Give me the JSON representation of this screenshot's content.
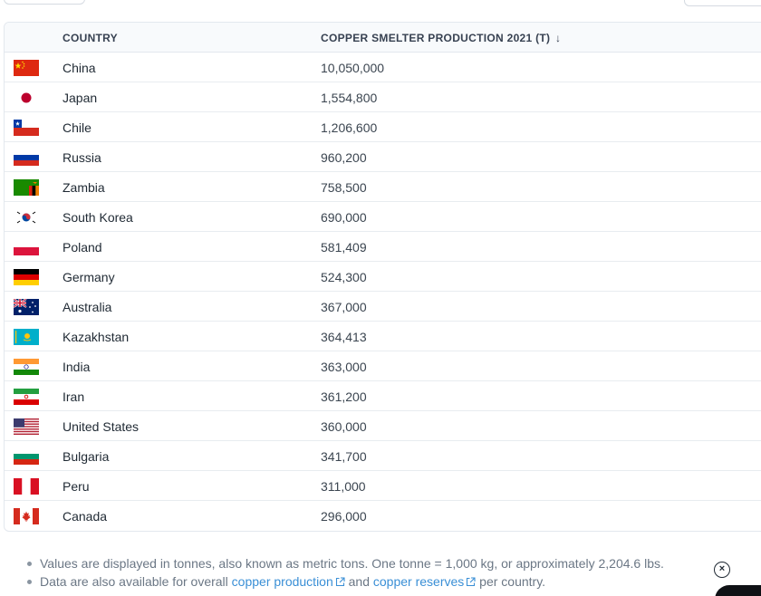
{
  "table": {
    "header": {
      "country": "COUNTRY",
      "production": "COPPER SMELTER PRODUCTION 2021 (T)",
      "sort_icon": "↓"
    },
    "rows": [
      {
        "country": "China",
        "value": "10,050,000",
        "flag": "china-flag"
      },
      {
        "country": "Japan",
        "value": "1,554,800",
        "flag": "japan-flag"
      },
      {
        "country": "Chile",
        "value": "1,206,600",
        "flag": "chile-flag"
      },
      {
        "country": "Russia",
        "value": "960,200",
        "flag": "russia-flag"
      },
      {
        "country": "Zambia",
        "value": "758,500",
        "flag": "zambia-flag"
      },
      {
        "country": "South Korea",
        "value": "690,000",
        "flag": "south-korea-flag"
      },
      {
        "country": "Poland",
        "value": "581,409",
        "flag": "poland-flag"
      },
      {
        "country": "Germany",
        "value": "524,300",
        "flag": "germany-flag"
      },
      {
        "country": "Australia",
        "value": "367,000",
        "flag": "australia-flag"
      },
      {
        "country": "Kazakhstan",
        "value": "364,413",
        "flag": "kazakhstan-flag"
      },
      {
        "country": "India",
        "value": "363,000",
        "flag": "india-flag"
      },
      {
        "country": "Iran",
        "value": "361,200",
        "flag": "iran-flag"
      },
      {
        "country": "United States",
        "value": "360,000",
        "flag": "united-states-flag"
      },
      {
        "country": "Bulgaria",
        "value": "341,700",
        "flag": "bulgaria-flag"
      },
      {
        "country": "Peru",
        "value": "311,000",
        "flag": "peru-flag"
      },
      {
        "country": "Canada",
        "value": "296,000",
        "flag": "canada-flag"
      }
    ]
  },
  "notes": {
    "note1": "Values are displayed in tonnes, also known as metric tons. One tonne = 1,000 kg, or approximately 2,204.6 lbs.",
    "note2_prefix": "Data are also available for overall ",
    "link1": "copper production",
    "note2_middle": " and ",
    "link2": "copper reserves",
    "note2_suffix": " per country."
  },
  "icons": {
    "close": "close-circle-icon",
    "external_link": "external-link-icon"
  },
  "colors": {
    "link": "#3a8fd6",
    "header_bg": "#f8fafc",
    "border": "#e3e8ee"
  }
}
